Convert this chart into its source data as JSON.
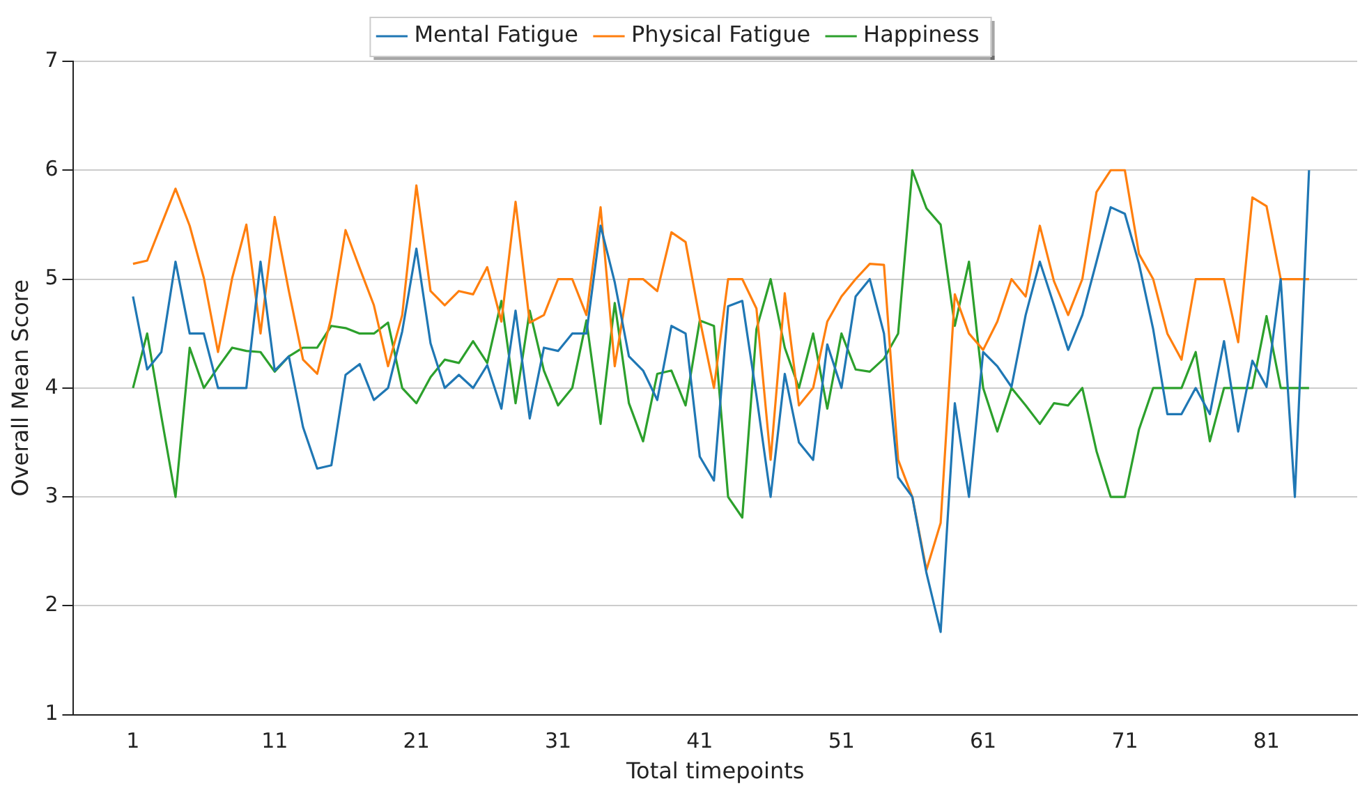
{
  "chart_data": {
    "type": "line",
    "xlabel": "Total timepoints",
    "ylabel": "Overall Mean Score",
    "x": [
      1,
      2,
      3,
      4,
      5,
      6,
      7,
      8,
      9,
      10,
      11,
      12,
      13,
      14,
      15,
      16,
      17,
      18,
      19,
      20,
      21,
      22,
      23,
      24,
      25,
      26,
      27,
      28,
      29,
      30,
      31,
      32,
      33,
      34,
      35,
      36,
      37,
      38,
      39,
      40,
      41,
      42,
      43,
      44,
      45,
      46,
      47,
      48,
      49,
      50,
      51,
      52,
      53,
      54,
      55,
      56,
      57,
      58,
      59,
      60,
      61,
      62,
      63,
      64,
      65,
      66,
      67,
      68,
      69,
      70,
      71,
      72,
      73,
      74,
      75,
      76,
      77,
      78,
      79,
      80,
      81,
      82,
      83,
      84
    ],
    "xlim": [
      -3.2,
      87.4
    ],
    "xticks": [
      1,
      11,
      21,
      31,
      41,
      51,
      61,
      71,
      81
    ],
    "ylim": [
      1,
      7
    ],
    "yticks": [
      1,
      2,
      3,
      4,
      5,
      6,
      7
    ],
    "grid": "y",
    "legend": "top",
    "marker": "none",
    "line_style": "solid",
    "series": [
      {
        "name": "Mental Fatigue",
        "color": "#1f77b4",
        "values": [
          4.84,
          4.17,
          4.33,
          5.16,
          4.5,
          4.5,
          4.0,
          4.0,
          4.0,
          5.16,
          4.16,
          4.29,
          3.64,
          3.26,
          3.29,
          4.12,
          4.22,
          3.89,
          4.0,
          4.52,
          5.28,
          4.41,
          4.0,
          4.12,
          4.0,
          4.21,
          3.81,
          4.71,
          3.72,
          4.37,
          4.34,
          4.5,
          4.5,
          5.49,
          4.97,
          4.29,
          4.16,
          3.89,
          4.57,
          4.5,
          3.37,
          3.15,
          4.75,
          4.8,
          3.93,
          3.0,
          4.13,
          3.5,
          3.34,
          4.4,
          4.0,
          4.84,
          5.0,
          4.5,
          3.18,
          3.0,
          2.3,
          1.76,
          3.86,
          3.0,
          4.33,
          4.2,
          4.01,
          4.67,
          5.16,
          4.76,
          4.35,
          4.67,
          5.16,
          5.66,
          5.6,
          5.14,
          4.54,
          3.76,
          3.76,
          4.0,
          3.76,
          4.43,
          3.6,
          4.25,
          4.01,
          5.0,
          3.0,
          6.0
        ]
      },
      {
        "name": "Physical Fatigue",
        "color": "#ff7f0e",
        "values": [
          5.14,
          5.17,
          5.5,
          5.83,
          5.49,
          5.01,
          4.33,
          5.01,
          5.5,
          4.5,
          5.57,
          4.89,
          4.26,
          4.13,
          4.65,
          5.45,
          5.1,
          4.76,
          4.2,
          4.67,
          5.86,
          4.89,
          4.76,
          4.89,
          4.86,
          5.11,
          4.61,
          5.71,
          4.6,
          4.67,
          5.0,
          5.0,
          4.67,
          5.66,
          4.2,
          5.0,
          5.0,
          4.89,
          5.43,
          5.34,
          4.63,
          4.0,
          5.0,
          5.0,
          4.73,
          3.34,
          4.87,
          3.84,
          4.0,
          4.61,
          4.84,
          5.0,
          5.14,
          5.13,
          3.34,
          3.0,
          2.33,
          2.76,
          4.86,
          4.5,
          4.35,
          4.61,
          5.0,
          4.84,
          5.49,
          4.98,
          4.67,
          5.0,
          5.8,
          6.0,
          6.0,
          5.23,
          5.0,
          4.5,
          4.26,
          5.0,
          5.0,
          5.0,
          4.42,
          5.75,
          5.67,
          5.0,
          5.0,
          5.0
        ]
      },
      {
        "name": "Happiness",
        "color": "#2ca02c",
        "values": [
          4.0,
          4.5,
          3.74,
          3.0,
          4.37,
          4.0,
          4.19,
          4.37,
          4.34,
          4.33,
          4.15,
          4.29,
          4.37,
          4.37,
          4.57,
          4.55,
          4.5,
          4.5,
          4.6,
          4.0,
          3.86,
          4.1,
          4.26,
          4.23,
          4.43,
          4.23,
          4.8,
          3.86,
          4.71,
          4.16,
          3.84,
          4.0,
          4.62,
          3.67,
          4.78,
          3.86,
          3.51,
          4.13,
          4.16,
          3.84,
          4.62,
          4.57,
          3.0,
          2.81,
          4.54,
          5.0,
          4.37,
          4.0,
          4.5,
          3.81,
          4.5,
          4.17,
          4.15,
          4.27,
          4.5,
          6.0,
          5.65,
          5.5,
          4.57,
          5.16,
          4.0,
          3.6,
          4.0,
          3.84,
          3.67,
          3.86,
          3.84,
          4.0,
          3.42,
          3.0,
          3.0,
          3.62,
          4.0,
          4.0,
          4.0,
          4.33,
          3.51,
          4.0,
          4.0,
          4.0,
          4.66,
          4.0,
          4.0,
          4.0
        ]
      }
    ]
  }
}
